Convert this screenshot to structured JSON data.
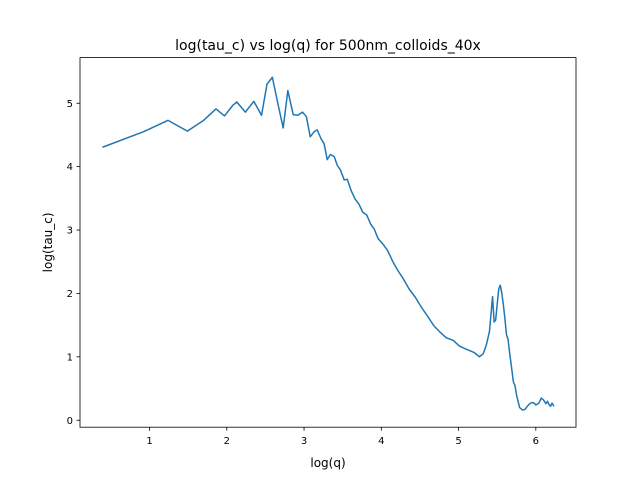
{
  "chart_data": {
    "type": "line",
    "title": "log(tau_c) vs log(q) for 500nm_colloids_40x",
    "xlabel": "log(q)",
    "ylabel": "log(tau_c)",
    "xlim": [
      0.1,
      6.52
    ],
    "ylim": [
      -0.11,
      5.72
    ],
    "xticks": [
      1,
      2,
      3,
      4,
      5,
      6
    ],
    "yticks": [
      0,
      1,
      2,
      3,
      4,
      5
    ],
    "xtick_labels": [
      "1",
      "2",
      "3",
      "4",
      "5",
      "6"
    ],
    "ytick_labels": [
      "0",
      "1",
      "2",
      "3",
      "4",
      "5"
    ],
    "grid": false,
    "series": [
      {
        "color": "#1f77b4",
        "x": [
          0.4,
          0.92,
          1.24,
          1.49,
          1.7,
          1.86,
          1.97,
          2.08,
          2.13,
          2.24,
          2.35,
          2.45,
          2.52,
          2.59,
          2.66,
          2.73,
          2.79,
          2.86,
          2.92,
          2.98,
          3.03,
          3.08,
          3.13,
          3.17,
          3.22,
          3.26,
          3.3,
          3.34,
          3.39,
          3.43,
          3.47,
          3.52,
          3.56,
          3.61,
          3.66,
          3.71,
          3.76,
          3.81,
          3.86,
          3.91,
          3.96,
          4.02,
          4.08,
          4.15,
          4.21,
          4.28,
          4.36,
          4.44,
          4.52,
          4.6,
          4.68,
          4.76,
          4.84,
          4.93,
          5.01,
          5.1,
          5.2,
          5.27,
          5.32,
          5.36,
          5.4,
          5.44,
          5.46,
          5.48,
          5.5,
          5.52,
          5.54,
          5.56,
          5.58,
          5.6,
          5.62,
          5.64,
          5.66,
          5.69,
          5.71,
          5.73,
          5.75,
          5.77,
          5.79,
          5.81,
          5.83,
          5.86,
          5.89,
          5.92,
          5.95,
          5.98,
          6.0,
          6.04,
          6.07,
          6.1,
          6.13,
          6.15,
          6.17,
          6.19,
          6.21,
          6.23
        ],
        "y": [
          4.31,
          4.55,
          4.73,
          4.56,
          4.73,
          4.91,
          4.8,
          4.97,
          5.02,
          4.86,
          5.03,
          4.81,
          5.3,
          5.41,
          5.0,
          4.61,
          5.2,
          4.82,
          4.81,
          4.86,
          4.79,
          4.47,
          4.55,
          4.58,
          4.44,
          4.36,
          4.11,
          4.19,
          4.16,
          4.02,
          3.95,
          3.79,
          3.8,
          3.62,
          3.49,
          3.41,
          3.28,
          3.24,
          3.1,
          3.01,
          2.86,
          2.78,
          2.68,
          2.5,
          2.37,
          2.24,
          2.07,
          1.94,
          1.78,
          1.64,
          1.49,
          1.39,
          1.3,
          1.26,
          1.17,
          1.12,
          1.07,
          1.0,
          1.05,
          1.19,
          1.4,
          1.95,
          1.55,
          1.58,
          1.83,
          2.07,
          2.13,
          2.0,
          1.82,
          1.6,
          1.35,
          1.28,
          1.07,
          0.79,
          0.6,
          0.55,
          0.4,
          0.3,
          0.2,
          0.18,
          0.16,
          0.17,
          0.22,
          0.26,
          0.28,
          0.27,
          0.24,
          0.27,
          0.35,
          0.32,
          0.26,
          0.3,
          0.25,
          0.22,
          0.27,
          0.23
        ]
      }
    ]
  }
}
